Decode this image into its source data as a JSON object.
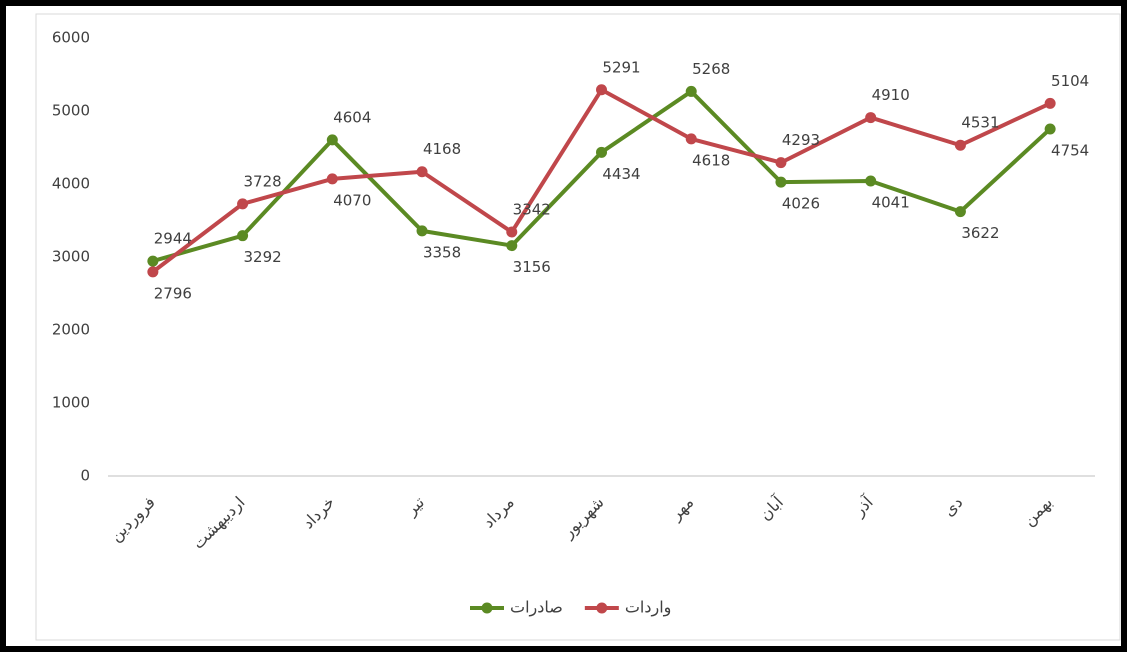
{
  "chart_data": {
    "type": "line",
    "categories": [
      "فروردین",
      "اردیبهشت",
      "خرداد",
      "تیر",
      "مرداد",
      "شهریور",
      "مهر",
      "آبان",
      "آذر",
      "دی",
      "بهمن"
    ],
    "series": [
      {
        "name": "صادرات",
        "color": "#5b8a23",
        "values": [
          2944,
          3292,
          4604,
          3358,
          3156,
          4434,
          5268,
          4026,
          4041,
          3622,
          4754
        ]
      },
      {
        "name": "واردات",
        "color": "#c0474b",
        "values": [
          2796,
          3728,
          4070,
          4168,
          3342,
          5291,
          4618,
          4293,
          4910,
          4531,
          5104
        ]
      }
    ],
    "ylim": [
      0,
      6000
    ],
    "yticks": [
      0,
      1000,
      2000,
      3000,
      4000,
      5000,
      6000
    ],
    "grid": false,
    "legend": "bottom"
  }
}
